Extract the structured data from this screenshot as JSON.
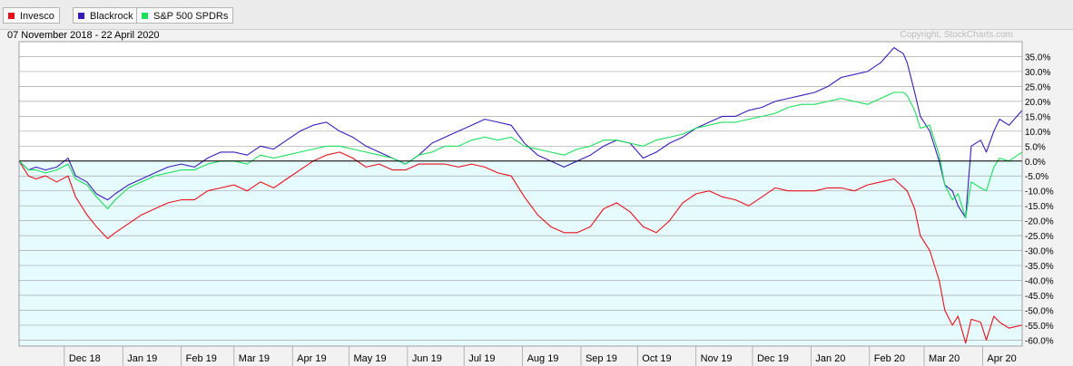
{
  "legend": [
    {
      "label": "Invesco",
      "color": "#e8101b"
    },
    {
      "label": "Blackrock",
      "color": "#3a1bb8"
    },
    {
      "label": "S&P 500 SPDRs",
      "color": "#19e05a"
    }
  ],
  "header": {
    "date_range": "07 November 2018 - 22 April 2020",
    "copyright": "Copyright, StockCharts.com"
  },
  "chart_data": {
    "type": "line",
    "title": "",
    "xlabel": "",
    "ylabel": "",
    "ylim": [
      -62,
      40
    ],
    "yticks": [
      35,
      30,
      25,
      20,
      15,
      10,
      5,
      0,
      -5,
      -10,
      -15,
      -20,
      -25,
      -30,
      -35,
      -40,
      -45,
      -50,
      -55,
      -60
    ],
    "ytick_labels": [
      "35.0%",
      "30.0%",
      "25.0%",
      "20.0%",
      "15.0%",
      "10.0%",
      "5.0%",
      "0.0%",
      "-5.0%",
      "-10.0%",
      "-15.0%",
      "-20.0%",
      "-25.0%",
      "-30.0%",
      "-35.0%",
      "-40.0%",
      "-45.0%",
      "-50.0%",
      "-55.0%",
      "-60.0%"
    ],
    "grid": true,
    "legend_position": "top-left",
    "x_start": "2018-11-07",
    "x_end": "2020-04-22",
    "month_ticks": [
      {
        "date": "2018-12-01",
        "label": "Dec 18"
      },
      {
        "date": "2019-01-01",
        "label": "Jan 19"
      },
      {
        "date": "2019-02-01",
        "label": "Feb 19"
      },
      {
        "date": "2019-03-01",
        "label": "Mar 19"
      },
      {
        "date": "2019-04-01",
        "label": "Apr 19"
      },
      {
        "date": "2019-05-01",
        "label": "May 19"
      },
      {
        "date": "2019-06-01",
        "label": "Jun 19"
      },
      {
        "date": "2019-07-01",
        "label": "Jul 19"
      },
      {
        "date": "2019-08-01",
        "label": "Aug 19"
      },
      {
        "date": "2019-09-01",
        "label": "Sep 19"
      },
      {
        "date": "2019-10-01",
        "label": "Oct 19"
      },
      {
        "date": "2019-11-01",
        "label": "Nov 19"
      },
      {
        "date": "2019-12-01",
        "label": "Dec 19"
      },
      {
        "date": "2020-01-01",
        "label": "Jan 20"
      },
      {
        "date": "2020-02-01",
        "label": "Feb 20"
      },
      {
        "date": "2020-03-01",
        "label": "Mar 20"
      },
      {
        "date": "2020-04-01",
        "label": "Apr 20"
      }
    ],
    "series": [
      {
        "name": "Invesco",
        "color": "#e8101b",
        "points": [
          [
            "2018-11-07",
            0
          ],
          [
            "2018-11-12",
            -5
          ],
          [
            "2018-11-16",
            -6
          ],
          [
            "2018-11-21",
            -5
          ],
          [
            "2018-11-27",
            -7
          ],
          [
            "2018-12-03",
            -5
          ],
          [
            "2018-12-07",
            -12
          ],
          [
            "2018-12-13",
            -18
          ],
          [
            "2018-12-18",
            -22
          ],
          [
            "2018-12-24",
            -26
          ],
          [
            "2018-12-28",
            -24
          ],
          [
            "2019-01-04",
            -21
          ],
          [
            "2019-01-11",
            -18
          ],
          [
            "2019-01-18",
            -16
          ],
          [
            "2019-01-25",
            -14
          ],
          [
            "2019-02-01",
            -13
          ],
          [
            "2019-02-08",
            -13
          ],
          [
            "2019-02-15",
            -10
          ],
          [
            "2019-02-22",
            -9
          ],
          [
            "2019-03-01",
            -8
          ],
          [
            "2019-03-08",
            -10
          ],
          [
            "2019-03-15",
            -7
          ],
          [
            "2019-03-22",
            -9
          ],
          [
            "2019-03-29",
            -6
          ],
          [
            "2019-04-05",
            -3
          ],
          [
            "2019-04-12",
            0
          ],
          [
            "2019-04-19",
            2
          ],
          [
            "2019-04-26",
            3
          ],
          [
            "2019-05-03",
            1
          ],
          [
            "2019-05-10",
            -2
          ],
          [
            "2019-05-17",
            -1
          ],
          [
            "2019-05-24",
            -3
          ],
          [
            "2019-05-31",
            -3
          ],
          [
            "2019-06-07",
            -1
          ],
          [
            "2019-06-14",
            -1
          ],
          [
            "2019-06-21",
            -1
          ],
          [
            "2019-06-28",
            -2
          ],
          [
            "2019-07-05",
            -1
          ],
          [
            "2019-07-12",
            -2
          ],
          [
            "2019-07-19",
            -4
          ],
          [
            "2019-07-26",
            -5
          ],
          [
            "2019-08-02",
            -12
          ],
          [
            "2019-08-09",
            -18
          ],
          [
            "2019-08-16",
            -22
          ],
          [
            "2019-08-23",
            -24
          ],
          [
            "2019-08-30",
            -24
          ],
          [
            "2019-09-06",
            -22
          ],
          [
            "2019-09-13",
            -16
          ],
          [
            "2019-09-20",
            -14
          ],
          [
            "2019-09-27",
            -17
          ],
          [
            "2019-10-04",
            -22
          ],
          [
            "2019-10-11",
            -24
          ],
          [
            "2019-10-18",
            -20
          ],
          [
            "2019-10-25",
            -14
          ],
          [
            "2019-11-01",
            -11
          ],
          [
            "2019-11-08",
            -10
          ],
          [
            "2019-11-15",
            -12
          ],
          [
            "2019-11-22",
            -13
          ],
          [
            "2019-11-29",
            -15
          ],
          [
            "2019-12-06",
            -12
          ],
          [
            "2019-12-13",
            -9
          ],
          [
            "2019-12-20",
            -10
          ],
          [
            "2019-12-27",
            -10
          ],
          [
            "2020-01-03",
            -10
          ],
          [
            "2020-01-10",
            -9
          ],
          [
            "2020-01-17",
            -9
          ],
          [
            "2020-01-24",
            -10
          ],
          [
            "2020-01-31",
            -8
          ],
          [
            "2020-02-07",
            -7
          ],
          [
            "2020-02-14",
            -6
          ],
          [
            "2020-02-21",
            -10
          ],
          [
            "2020-02-25",
            -16
          ],
          [
            "2020-02-28",
            -25
          ],
          [
            "2020-03-04",
            -30
          ],
          [
            "2020-03-09",
            -40
          ],
          [
            "2020-03-12",
            -50
          ],
          [
            "2020-03-16",
            -55
          ],
          [
            "2020-03-19",
            -52
          ],
          [
            "2020-03-23",
            -61
          ],
          [
            "2020-03-26",
            -53
          ],
          [
            "2020-03-31",
            -54
          ],
          [
            "2020-04-03",
            -60
          ],
          [
            "2020-04-07",
            -52
          ],
          [
            "2020-04-10",
            -54
          ],
          [
            "2020-04-15",
            -56
          ],
          [
            "2020-04-22",
            -55
          ]
        ]
      },
      {
        "name": "Blackrock",
        "color": "#3a1bb8",
        "points": [
          [
            "2018-11-07",
            0
          ],
          [
            "2018-11-12",
            -3
          ],
          [
            "2018-11-16",
            -2
          ],
          [
            "2018-11-21",
            -3
          ],
          [
            "2018-11-27",
            -2
          ],
          [
            "2018-12-03",
            1
          ],
          [
            "2018-12-07",
            -5
          ],
          [
            "2018-12-13",
            -7
          ],
          [
            "2018-12-18",
            -11
          ],
          [
            "2018-12-24",
            -13
          ],
          [
            "2018-12-28",
            -11
          ],
          [
            "2019-01-04",
            -8
          ],
          [
            "2019-01-11",
            -6
          ],
          [
            "2019-01-18",
            -4
          ],
          [
            "2019-01-25",
            -2
          ],
          [
            "2019-02-01",
            -1
          ],
          [
            "2019-02-08",
            -2
          ],
          [
            "2019-02-15",
            1
          ],
          [
            "2019-02-22",
            3
          ],
          [
            "2019-03-01",
            3
          ],
          [
            "2019-03-08",
            2
          ],
          [
            "2019-03-15",
            5
          ],
          [
            "2019-03-22",
            4
          ],
          [
            "2019-03-29",
            7
          ],
          [
            "2019-04-05",
            10
          ],
          [
            "2019-04-12",
            12
          ],
          [
            "2019-04-19",
            13
          ],
          [
            "2019-04-26",
            10
          ],
          [
            "2019-05-03",
            8
          ],
          [
            "2019-05-10",
            5
          ],
          [
            "2019-05-17",
            3
          ],
          [
            "2019-05-24",
            1
          ],
          [
            "2019-05-31",
            -1
          ],
          [
            "2019-06-07",
            2
          ],
          [
            "2019-06-14",
            6
          ],
          [
            "2019-06-21",
            8
          ],
          [
            "2019-06-28",
            10
          ],
          [
            "2019-07-05",
            12
          ],
          [
            "2019-07-12",
            14
          ],
          [
            "2019-07-19",
            13
          ],
          [
            "2019-07-26",
            12
          ],
          [
            "2019-08-02",
            6
          ],
          [
            "2019-08-09",
            2
          ],
          [
            "2019-08-16",
            0
          ],
          [
            "2019-08-23",
            -2
          ],
          [
            "2019-08-30",
            0
          ],
          [
            "2019-09-06",
            2
          ],
          [
            "2019-09-13",
            5
          ],
          [
            "2019-09-20",
            7
          ],
          [
            "2019-09-27",
            6
          ],
          [
            "2019-10-04",
            1
          ],
          [
            "2019-10-11",
            3
          ],
          [
            "2019-10-18",
            6
          ],
          [
            "2019-10-25",
            8
          ],
          [
            "2019-11-01",
            11
          ],
          [
            "2019-11-08",
            13
          ],
          [
            "2019-11-15",
            15
          ],
          [
            "2019-11-22",
            15
          ],
          [
            "2019-11-29",
            17
          ],
          [
            "2019-12-06",
            18
          ],
          [
            "2019-12-13",
            20
          ],
          [
            "2019-12-20",
            21
          ],
          [
            "2019-12-27",
            22
          ],
          [
            "2020-01-03",
            23
          ],
          [
            "2020-01-10",
            25
          ],
          [
            "2020-01-17",
            28
          ],
          [
            "2020-01-24",
            29
          ],
          [
            "2020-01-31",
            30
          ],
          [
            "2020-02-07",
            33
          ],
          [
            "2020-02-14",
            38
          ],
          [
            "2020-02-19",
            36
          ],
          [
            "2020-02-21",
            33
          ],
          [
            "2020-02-25",
            23
          ],
          [
            "2020-02-28",
            15
          ],
          [
            "2020-03-04",
            10
          ],
          [
            "2020-03-09",
            0
          ],
          [
            "2020-03-12",
            -8
          ],
          [
            "2020-03-16",
            -10
          ],
          [
            "2020-03-19",
            -15
          ],
          [
            "2020-03-23",
            -19
          ],
          [
            "2020-03-26",
            5
          ],
          [
            "2020-03-31",
            7
          ],
          [
            "2020-04-03",
            3
          ],
          [
            "2020-04-07",
            10
          ],
          [
            "2020-04-10",
            14
          ],
          [
            "2020-04-15",
            12
          ],
          [
            "2020-04-22",
            17
          ]
        ]
      },
      {
        "name": "S&P 500 SPDRs",
        "color": "#19e05a",
        "points": [
          [
            "2018-11-07",
            0
          ],
          [
            "2018-11-12",
            -3
          ],
          [
            "2018-11-16",
            -3
          ],
          [
            "2018-11-21",
            -4
          ],
          [
            "2018-11-27",
            -3
          ],
          [
            "2018-12-03",
            -1
          ],
          [
            "2018-12-07",
            -6
          ],
          [
            "2018-12-13",
            -8
          ],
          [
            "2018-12-18",
            -12
          ],
          [
            "2018-12-24",
            -16
          ],
          [
            "2018-12-28",
            -13
          ],
          [
            "2019-01-04",
            -9
          ],
          [
            "2019-01-11",
            -7
          ],
          [
            "2019-01-18",
            -5
          ],
          [
            "2019-01-25",
            -4
          ],
          [
            "2019-02-01",
            -3
          ],
          [
            "2019-02-08",
            -3
          ],
          [
            "2019-02-15",
            -1
          ],
          [
            "2019-02-22",
            0
          ],
          [
            "2019-03-01",
            0
          ],
          [
            "2019-03-08",
            -1
          ],
          [
            "2019-03-15",
            2
          ],
          [
            "2019-03-22",
            1
          ],
          [
            "2019-03-29",
            2
          ],
          [
            "2019-04-05",
            3
          ],
          [
            "2019-04-12",
            4
          ],
          [
            "2019-04-19",
            5
          ],
          [
            "2019-04-26",
            5
          ],
          [
            "2019-05-03",
            4
          ],
          [
            "2019-05-10",
            3
          ],
          [
            "2019-05-17",
            2
          ],
          [
            "2019-05-24",
            1
          ],
          [
            "2019-05-31",
            -1
          ],
          [
            "2019-06-07",
            2
          ],
          [
            "2019-06-14",
            3
          ],
          [
            "2019-06-21",
            5
          ],
          [
            "2019-06-28",
            5
          ],
          [
            "2019-07-05",
            7
          ],
          [
            "2019-07-12",
            8
          ],
          [
            "2019-07-19",
            7
          ],
          [
            "2019-07-26",
            8
          ],
          [
            "2019-08-02",
            5
          ],
          [
            "2019-08-09",
            4
          ],
          [
            "2019-08-16",
            3
          ],
          [
            "2019-08-23",
            2
          ],
          [
            "2019-08-30",
            4
          ],
          [
            "2019-09-06",
            5
          ],
          [
            "2019-09-13",
            7
          ],
          [
            "2019-09-20",
            7
          ],
          [
            "2019-09-27",
            6
          ],
          [
            "2019-10-04",
            5
          ],
          [
            "2019-10-11",
            7
          ],
          [
            "2019-10-18",
            8
          ],
          [
            "2019-10-25",
            9
          ],
          [
            "2019-11-01",
            11
          ],
          [
            "2019-11-08",
            12
          ],
          [
            "2019-11-15",
            13
          ],
          [
            "2019-11-22",
            13
          ],
          [
            "2019-11-29",
            14
          ],
          [
            "2019-12-06",
            15
          ],
          [
            "2019-12-13",
            16
          ],
          [
            "2019-12-20",
            18
          ],
          [
            "2019-12-27",
            19
          ],
          [
            "2020-01-03",
            19
          ],
          [
            "2020-01-10",
            20
          ],
          [
            "2020-01-17",
            21
          ],
          [
            "2020-01-24",
            20
          ],
          [
            "2020-01-31",
            19
          ],
          [
            "2020-02-07",
            21
          ],
          [
            "2020-02-14",
            23
          ],
          [
            "2020-02-19",
            23
          ],
          [
            "2020-02-21",
            22
          ],
          [
            "2020-02-25",
            17
          ],
          [
            "2020-02-28",
            11
          ],
          [
            "2020-03-04",
            12
          ],
          [
            "2020-03-09",
            2
          ],
          [
            "2020-03-12",
            -8
          ],
          [
            "2020-03-16",
            -13
          ],
          [
            "2020-03-19",
            -11
          ],
          [
            "2020-03-23",
            -19
          ],
          [
            "2020-03-26",
            -7
          ],
          [
            "2020-03-31",
            -9
          ],
          [
            "2020-04-03",
            -10
          ],
          [
            "2020-04-07",
            -2
          ],
          [
            "2020-04-10",
            1
          ],
          [
            "2020-04-15",
            0
          ],
          [
            "2020-04-22",
            3
          ]
        ]
      }
    ]
  }
}
